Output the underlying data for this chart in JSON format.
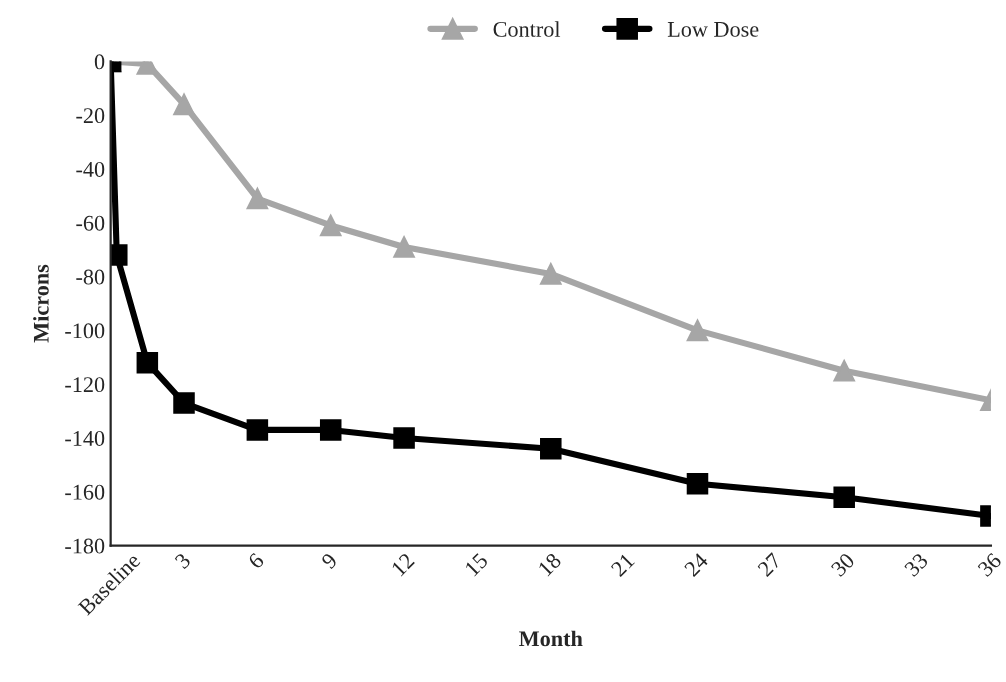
{
  "chart_data": {
    "type": "line",
    "xlabel": "Month",
    "ylabel": "Microns",
    "xlim": [
      0,
      36
    ],
    "xticks": [
      {
        "value": 0,
        "label": "Baseline"
      },
      3,
      6,
      9,
      12,
      15,
      18,
      21,
      24,
      27,
      30,
      33,
      36
    ],
    "ylim": [
      -180,
      0
    ],
    "yticks": [
      -180,
      -160,
      -140,
      -120,
      -100,
      -80,
      -60,
      -40,
      -20,
      0
    ],
    "grid": false,
    "legend": "top",
    "line_style": "solid",
    "series": [
      {
        "name": "Control",
        "color": "#a6a6a6",
        "marker": "triangle",
        "x": [
          0,
          1.5,
          3,
          6,
          9,
          12,
          18,
          24,
          30,
          36
        ],
        "values": [
          0,
          -1,
          -16,
          -51,
          -61,
          -69,
          -79,
          -100,
          -115,
          -126
        ]
      },
      {
        "name": "Low Dose",
        "color": "#000000",
        "marker": "square",
        "x": [
          0,
          0.25,
          1.5,
          3,
          6,
          9,
          12,
          18,
          24,
          30,
          36
        ],
        "values": [
          0,
          -72,
          -112,
          -127,
          -137,
          -137,
          -140,
          -144,
          -157,
          -162,
          -169
        ]
      }
    ]
  }
}
